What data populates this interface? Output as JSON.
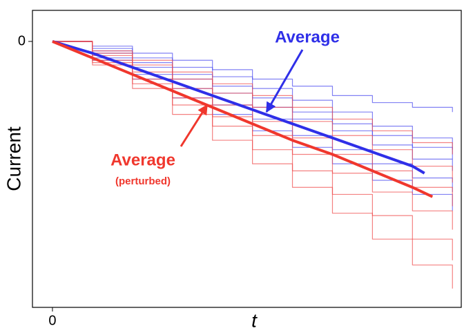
{
  "chart_data": {
    "type": "line",
    "x_label": "t",
    "y_label": "Current",
    "xlim": [
      -0.05,
      1.022
    ],
    "ylim": [
      -1.13,
      0.132
    ],
    "xticks": [
      0
    ],
    "yticks": [
      0
    ],
    "series": [
      {
        "color": "#4b4bf0",
        "step": true,
        "x": [
          0,
          0.1,
          0.2,
          0.3,
          0.4,
          0.5,
          0.6,
          0.7,
          0.8,
          0.9,
          1.0
        ],
        "values": [
          0,
          -0.02,
          -0.05,
          -0.08,
          -0.12,
          -0.16,
          -0.19,
          -0.23,
          -0.26,
          -0.28,
          -0.3
        ]
      },
      {
        "color": "#4b4bf0",
        "step": true,
        "x": [
          0,
          0.1,
          0.2,
          0.3,
          0.4,
          0.5,
          0.6,
          0.7,
          0.8,
          0.9,
          1.0
        ],
        "values": [
          0,
          -0.05,
          -0.11,
          -0.16,
          -0.22,
          -0.28,
          -0.33,
          -0.38,
          -0.44,
          -0.5,
          -0.55
        ]
      },
      {
        "color": "#4b4bf0",
        "step": true,
        "x": [
          0,
          0.1,
          0.2,
          0.3,
          0.4,
          0.5,
          0.6,
          0.7,
          0.8,
          0.9,
          1.0
        ],
        "values": [
          0,
          -0.07,
          -0.14,
          -0.2,
          -0.27,
          -0.33,
          -0.4,
          -0.46,
          -0.52,
          -0.58,
          -0.64
        ]
      },
      {
        "color": "#4b4bf0",
        "step": true,
        "x": [
          0,
          0.1,
          0.2,
          0.3,
          0.4,
          0.5,
          0.6,
          0.7,
          0.8,
          0.9,
          1.0
        ],
        "values": [
          0,
          -0.04,
          -0.09,
          -0.14,
          -0.19,
          -0.24,
          -0.3,
          -0.35,
          -0.4,
          -0.45,
          -0.5
        ]
      },
      {
        "color": "#4b4bf0",
        "step": true,
        "x": [
          0,
          0.1,
          0.2,
          0.3,
          0.4,
          0.5,
          0.6,
          0.7,
          0.8,
          0.9,
          1.0
        ],
        "values": [
          0,
          -0.08,
          -0.16,
          -0.24,
          -0.31,
          -0.38,
          -0.45,
          -0.52,
          -0.59,
          -0.65,
          -0.72
        ]
      },
      {
        "color": "#4b4bf0",
        "step": true,
        "x": [
          0,
          0.1,
          0.2,
          0.3,
          0.4,
          0.5,
          0.6,
          0.7,
          0.8,
          0.9,
          1.0
        ],
        "values": [
          0,
          -0.03,
          -0.07,
          -0.11,
          -0.15,
          -0.2,
          -0.25,
          -0.3,
          -0.36,
          -0.41,
          -0.46
        ]
      },
      {
        "color": "#f04b4b",
        "step": true,
        "x": [
          0,
          0.1,
          0.2,
          0.3,
          0.4,
          0.5,
          0.6,
          0.7,
          0.8,
          0.9,
          1.0
        ],
        "values": [
          0,
          -0.1,
          -0.2,
          -0.31,
          -0.42,
          -0.52,
          -0.62,
          -0.73,
          -0.84,
          -0.95,
          -1.05
        ]
      },
      {
        "color": "#f04b4b",
        "step": true,
        "x": [
          0,
          0.1,
          0.2,
          0.3,
          0.4,
          0.5,
          0.6,
          0.7,
          0.8,
          0.9,
          1.0
        ],
        "values": [
          0,
          -0.06,
          -0.13,
          -0.2,
          -0.27,
          -0.34,
          -0.41,
          -0.48,
          -0.55,
          -0.62,
          -0.7
        ]
      },
      {
        "color": "#f04b4b",
        "step": true,
        "x": [
          0,
          0.1,
          0.2,
          0.3,
          0.4,
          0.5,
          0.6,
          0.7,
          0.8,
          0.9,
          1.0
        ],
        "values": [
          0,
          -0.08,
          -0.16,
          -0.24,
          -0.32,
          -0.4,
          -0.48,
          -0.56,
          -0.64,
          -0.72,
          -0.8
        ]
      },
      {
        "color": "#f04b4b",
        "step": true,
        "x": [
          0,
          0.1,
          0.2,
          0.3,
          0.4,
          0.5,
          0.6,
          0.7,
          0.8,
          0.9,
          1.0
        ],
        "values": [
          0,
          -0.05,
          -0.1,
          -0.16,
          -0.22,
          -0.28,
          -0.34,
          -0.4,
          -0.46,
          -0.53,
          -0.6
        ]
      },
      {
        "color": "#f04b4b",
        "step": true,
        "x": [
          0,
          0.1,
          0.2,
          0.3,
          0.4,
          0.5,
          0.6,
          0.7,
          0.8,
          0.9,
          1.0
        ],
        "values": [
          0,
          -0.09,
          -0.18,
          -0.27,
          -0.36,
          -0.46,
          -0.55,
          -0.65,
          -0.74,
          -0.84,
          -0.93
        ]
      },
      {
        "color": "#f04b4b",
        "step": true,
        "x": [
          0,
          0.1,
          0.2,
          0.3,
          0.4,
          0.5,
          0.6,
          0.7,
          0.8,
          0.9,
          1.0
        ],
        "values": [
          0,
          -0.04,
          -0.08,
          -0.13,
          -0.18,
          -0.23,
          -0.28,
          -0.33,
          -0.38,
          -0.43,
          -0.48
        ]
      },
      {
        "color": "#2f2fe8",
        "step": false,
        "x": [
          0,
          0.1,
          0.2,
          0.3,
          0.4,
          0.5,
          0.6,
          0.7,
          0.8,
          0.9,
          0.93
        ],
        "values": [
          0,
          -0.05,
          -0.11,
          -0.17,
          -0.23,
          -0.29,
          -0.35,
          -0.41,
          -0.47,
          -0.53,
          -0.56
        ]
      },
      {
        "color": "#f0372d",
        "step": false,
        "x": [
          0,
          0.1,
          0.2,
          0.3,
          0.4,
          0.5,
          0.6,
          0.7,
          0.8,
          0.9,
          0.95
        ],
        "values": [
          0,
          -0.07,
          -0.14,
          -0.21,
          -0.28,
          -0.35,
          -0.42,
          -0.48,
          -0.55,
          -0.62,
          -0.66
        ]
      }
    ],
    "annotations": [
      {
        "text": "Average",
        "color": "#2f2fe8"
      },
      {
        "text": "Average",
        "color": "#f0372d"
      },
      {
        "text": "(perturbed)",
        "color": "#f0372d"
      }
    ]
  }
}
